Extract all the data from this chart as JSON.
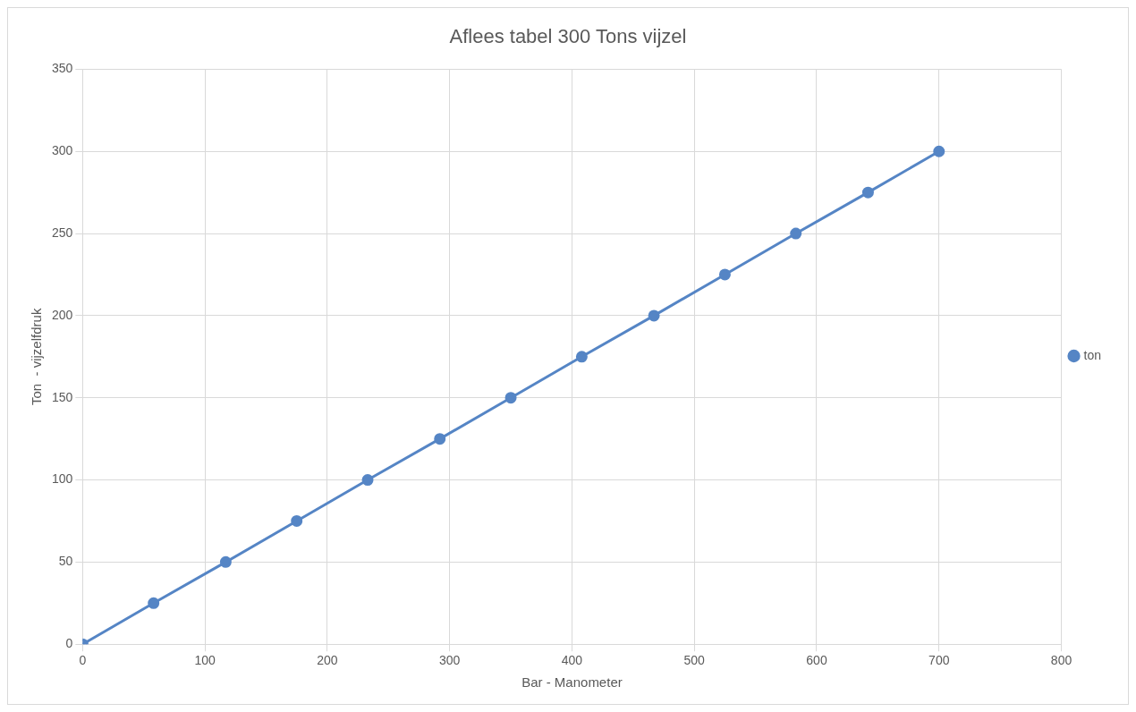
{
  "chart_data": {
    "type": "line",
    "title": "Aflees tabel 300 Tons vijzel",
    "xlabel": "Bar - Manometer",
    "ylabel": "Ton  - vijzelfdruk",
    "x": [
      0,
      58,
      117,
      175,
      233,
      292,
      350,
      408,
      467,
      525,
      583,
      642,
      700
    ],
    "series": [
      {
        "name": "ton",
        "color": "#5585c5",
        "values": [
          0,
          25,
          50,
          75,
          100,
          125,
          150,
          175,
          200,
          225,
          250,
          275,
          300
        ]
      }
    ],
    "xlim": [
      0,
      800
    ],
    "xticks": [
      0,
      100,
      200,
      300,
      400,
      500,
      600,
      700,
      800
    ],
    "ylim": [
      0,
      350
    ],
    "yticks": [
      0,
      50,
      100,
      150,
      200,
      250,
      300,
      350
    ],
    "grid": true,
    "legend": "right",
    "marker": "circle",
    "line_style": "solid"
  }
}
